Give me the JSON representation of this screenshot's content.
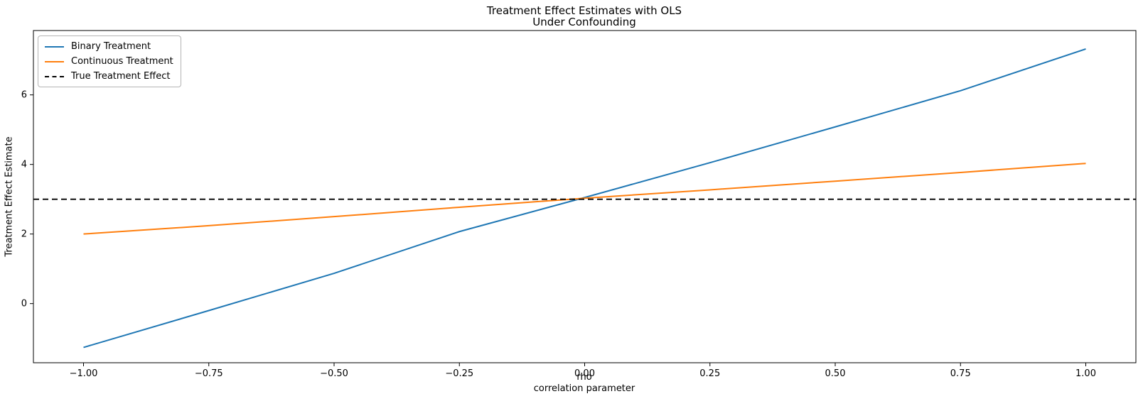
{
  "figure": {
    "title_line1": "Treatment Effect Estimates with OLS",
    "title_line2": "Under Confounding",
    "xlabel_line1": "rho",
    "xlabel_line2": "correlation parameter"
  },
  "chart_data": {
    "type": "line",
    "title": "Treatment Effect Estimates with OLS\nUnder Confounding",
    "xlabel": "rho\ncorrelation parameter",
    "ylabel": "Treatment Effect Estimate",
    "x": [
      -1.0,
      -0.75,
      -0.5,
      -0.25,
      0.0,
      0.25,
      0.5,
      0.75,
      1.0
    ],
    "series": [
      {
        "name": "Binary Treatment",
        "color": "#1f77b4",
        "style": "solid",
        "values": [
          -1.26,
          -0.2,
          0.87,
          2.07,
          3.05,
          4.05,
          5.08,
          6.12,
          7.32
        ]
      },
      {
        "name": "Continuous Treatment",
        "color": "#ff7f0e",
        "style": "solid",
        "values": [
          2.0,
          2.24,
          2.5,
          2.77,
          3.03,
          3.27,
          3.52,
          3.77,
          4.03
        ]
      },
      {
        "name": "True Treatment Effect",
        "color": "#000000",
        "style": "dashed",
        "reference_y": 3.0
      }
    ],
    "xlim": [
      -1.1,
      1.1
    ],
    "ylim": [
      -1.7,
      7.85
    ],
    "xticks": {
      "values": [
        -1.0,
        -0.75,
        -0.5,
        -0.25,
        0.0,
        0.25,
        0.5,
        0.75,
        1.0
      ],
      "labels": [
        "−1.00",
        "−0.75",
        "−0.50",
        "−0.25",
        "0.00",
        "0.25",
        "0.50",
        "0.75",
        "1.00"
      ]
    },
    "yticks": {
      "values": [
        0,
        2,
        4,
        6
      ],
      "labels": [
        "0",
        "2",
        "4",
        "6"
      ]
    },
    "legend": {
      "position": "upper left",
      "entries": [
        "Binary Treatment",
        "Continuous Treatment",
        "True Treatment Effect"
      ]
    },
    "grid": false,
    "frame_color": "#000000",
    "background_color": "#ffffff"
  }
}
